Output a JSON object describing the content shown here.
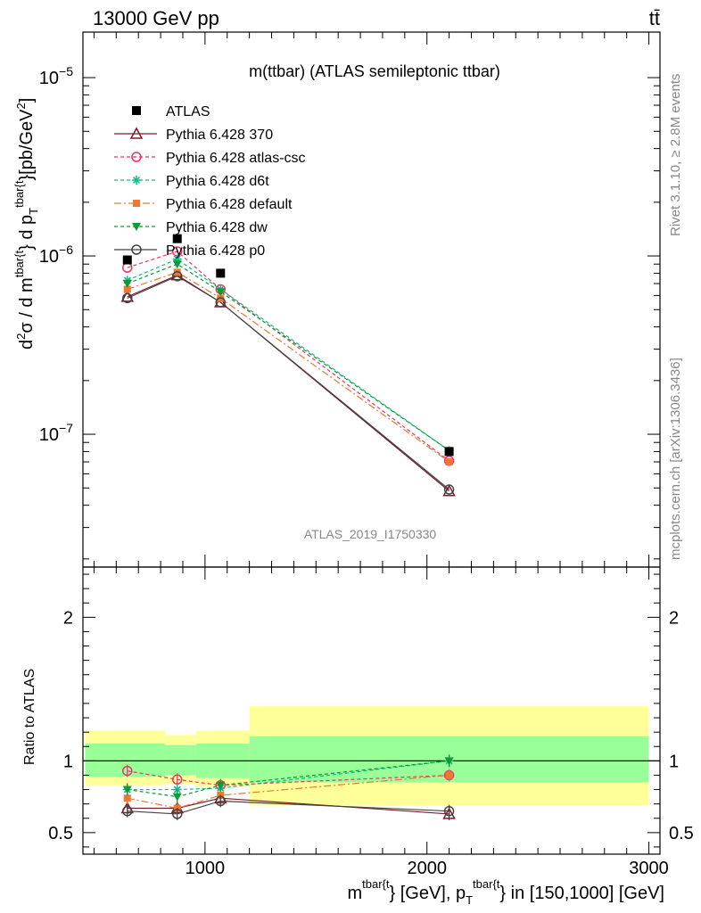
{
  "header": {
    "left": "13000 GeV pp",
    "right": "tt̄"
  },
  "side_text": {
    "rivet": "Rivet 3.1.10, ≥ 2.8M events",
    "mcplots": "mcplots.cern.ch [arXiv:1306.3436]"
  },
  "chart_data": {
    "type": "line",
    "title": "m(ttbar) (ATLAS semileptonic ttbar)",
    "analysis_id": "ATLAS_2019_I1750330",
    "xlabel": {
      "main": "m",
      "sup1": "tbar{t",
      "mid": "} [GeV], p",
      "sub": "T",
      "sup2": "tbar{t",
      "end": "} in [150,1000] [GeV]"
    },
    "ylabel": {
      "a": "d",
      "a_sup": "2",
      "b": "σ / d m",
      "b_sup": "tbar{t",
      "c": "} d p",
      "c_sub": "T",
      "c_sup": "tbar{t",
      "d": "}[pb/GeV",
      "d_sup": "2",
      "e": "]"
    },
    "ratio_ylabel": "Ratio to ATLAS",
    "xlim": [
      450,
      3050
    ],
    "ylim": [
      1.8e-08,
      1.8e-05
    ],
    "ylog": true,
    "ratio_ylim": [
      0.35,
      2.35
    ],
    "x_ticks": [
      "1000",
      "2000",
      "3000"
    ],
    "y_ticks": [
      {
        "value": 1e-07,
        "base": "10",
        "exp": "−7"
      },
      {
        "value": 1e-06,
        "base": "10",
        "exp": "−6"
      },
      {
        "value": 1e-05,
        "base": "10",
        "exp": "−5"
      }
    ],
    "ratio_ticks": [
      "0.5",
      "1",
      "2"
    ],
    "bins": [
      [
        460,
        820
      ],
      [
        820,
        960
      ],
      [
        960,
        1200
      ],
      [
        1200,
        3000
      ]
    ],
    "x": [
      650,
      875,
      1070,
      2100
    ],
    "data": {
      "name": "ATLAS",
      "values": [
        9.5e-07,
        1.25e-06,
        8e-07,
        8e-08
      ]
    },
    "band_inner": [
      [
        0.89,
        1.12
      ],
      [
        0.9,
        1.11
      ],
      [
        0.88,
        1.12
      ],
      [
        0.85,
        1.17
      ]
    ],
    "band_outer": [
      [
        0.83,
        1.21
      ],
      [
        0.84,
        1.18
      ],
      [
        0.82,
        1.21
      ],
      [
        0.69,
        1.38
      ]
    ],
    "series": [
      {
        "name": "Pythia 6.428 370",
        "color": "#7b1c28",
        "dash": "",
        "marker": "triangle-open",
        "values": [
          5.9e-07,
          7.8e-07,
          5.5e-07,
          4.8e-08
        ],
        "ratio": [
          0.67,
          0.67,
          0.74,
          0.63
        ]
      },
      {
        "name": "Pythia 6.428 atlas-csc",
        "color": "#ee3366",
        "dash": "4,3",
        "marker": "circle-open",
        "values": [
          8.6e-07,
          1.06e-06,
          6.5e-07,
          7.1e-08
        ],
        "ratio": [
          0.93,
          0.87,
          0.83,
          0.9
        ]
      },
      {
        "name": "Pythia 6.428 d6t",
        "color": "#11bb88",
        "dash": "4,3",
        "marker": "star",
        "values": [
          7.3e-07,
          9.6e-07,
          6.5e-07,
          8.1e-08
        ],
        "ratio": [
          0.8,
          0.8,
          0.81,
          1.0
        ]
      },
      {
        "name": "Pythia 6.428 default",
        "color": "#ee7733",
        "dash": "8,3,2,3",
        "marker": "square",
        "values": [
          6.5e-07,
          8.1e-07,
          5.8e-07,
          7e-08
        ],
        "ratio": [
          0.74,
          0.67,
          0.76,
          0.9
        ]
      },
      {
        "name": "Pythia 6.428 dw",
        "color": "#119933",
        "dash": "4,3",
        "marker": "triangle-down",
        "values": [
          7e-07,
          9e-07,
          6.3e-07,
          8.1e-08
        ],
        "ratio": [
          0.8,
          0.75,
          0.83,
          1.0
        ]
      },
      {
        "name": "Pythia 6.428 p0",
        "color": "#444444",
        "dash": "",
        "marker": "circle-open",
        "values": [
          5.8e-07,
          7.7e-07,
          5.5e-07,
          4.9e-08
        ],
        "ratio": [
          0.65,
          0.63,
          0.72,
          0.65
        ]
      }
    ]
  }
}
